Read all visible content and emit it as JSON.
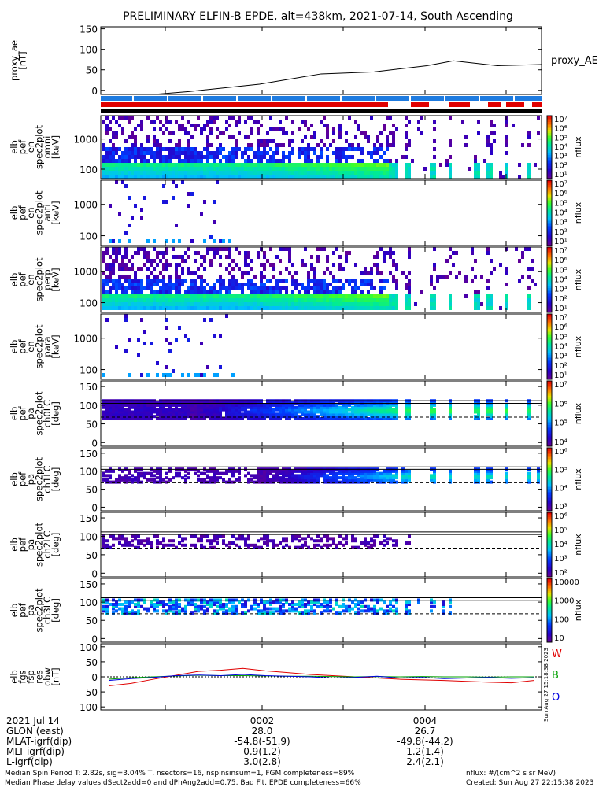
{
  "title": "PRELIMINARY ELFIN-B EPDE, alt=438km, 2021-07-14, South Ascending",
  "chart_data": [
    {
      "type": "line",
      "name": "proxy_ae",
      "ylabel_lines": [
        "proxy_ae",
        "[nT]"
      ],
      "side_label": "proxy_AE",
      "ylim": [
        -10,
        155
      ],
      "yticks": [
        "150",
        "100",
        "50",
        "0"
      ],
      "x": [
        0.0,
        0.12,
        0.2,
        0.36,
        0.5,
        0.62,
        0.74,
        0.8,
        0.9,
        1.0
      ],
      "values": [
        -15,
        -15,
        -3,
        15,
        40,
        45,
        60,
        72,
        60,
        63
      ]
    },
    {
      "type": "heatmap",
      "name": "elb pef en spec2plot omni",
      "ylabel_lines": [
        "elb",
        "pef",
        "en",
        "spec2plot",
        "omni",
        "[keV]"
      ],
      "yticks": [
        "1000",
        "100"
      ],
      "zlabel": "nflux",
      "zticks": [
        "10⁷",
        "10⁶",
        "10⁵",
        "10⁴",
        "10³",
        "10²",
        "10¹"
      ]
    },
    {
      "type": "heatmap",
      "name": "elb pef en spec2plot anti",
      "ylabel_lines": [
        "elb",
        "pef",
        "en",
        "spec2plot",
        "anti",
        "[keV]"
      ],
      "yticks": [
        "1000",
        "100"
      ],
      "zlabel": "nflux",
      "zticks": [
        "10⁷",
        "10⁶",
        "10⁵",
        "10⁴",
        "10³",
        "10²",
        "10¹"
      ]
    },
    {
      "type": "heatmap",
      "name": "elb pef en spec2plot perp",
      "ylabel_lines": [
        "elb",
        "pef",
        "en",
        "spec2plot",
        "perp",
        "[keV]"
      ],
      "yticks": [
        "1000",
        "100"
      ],
      "zlabel": "nflux",
      "zticks": [
        "10⁷",
        "10⁶",
        "10⁵",
        "10⁴",
        "10³",
        "10²",
        "10¹"
      ]
    },
    {
      "type": "heatmap",
      "name": "elb pef en spec2plot para",
      "ylabel_lines": [
        "elb",
        "pef",
        "en",
        "spec2plot",
        "para",
        "[keV]"
      ],
      "yticks": [
        "1000",
        "100"
      ],
      "zlabel": "nflux",
      "zticks": [
        "10⁷",
        "10⁶",
        "10⁵",
        "10⁴",
        "10³",
        "10²",
        "10¹"
      ]
    },
    {
      "type": "heatmap",
      "name": "elb pef pa spec2plot ch0LC",
      "ylabel_lines": [
        "elb",
        "pef",
        "pa",
        "spec2plot",
        "ch0LC",
        "[deg]"
      ],
      "yticks": [
        "150",
        "100",
        "50",
        "0"
      ],
      "zlabel": "nflux",
      "zticks": [
        "10⁷",
        "10⁶",
        "10⁵",
        "10⁴"
      ]
    },
    {
      "type": "heatmap",
      "name": "elb pef pa spec2plot ch1LC",
      "ylabel_lines": [
        "elb",
        "pef",
        "pa",
        "spec2plot",
        "ch1LC",
        "[deg]"
      ],
      "yticks": [
        "150",
        "100",
        "50",
        "0"
      ],
      "zlabel": "nflux",
      "zticks": [
        "10⁶",
        "10⁵",
        "10⁴",
        "10³"
      ]
    },
    {
      "type": "heatmap",
      "name": "elb pef pa spec2plot ch2LC",
      "ylabel_lines": [
        "elb",
        "pef",
        "pa",
        "spec2plot",
        "ch2LC",
        "[deg]"
      ],
      "yticks": [
        "150",
        "100",
        "50",
        "0"
      ],
      "zlabel": "nflux",
      "zticks": [
        "10⁶",
        "10⁵",
        "10⁴",
        "10³",
        "10²"
      ]
    },
    {
      "type": "heatmap",
      "name": "elb pef pa spec2plot ch3LC",
      "ylabel_lines": [
        "elb",
        "pef",
        "pa",
        "spec2plot",
        "ch3LC",
        "[deg]"
      ],
      "yticks": [
        "150",
        "100",
        "50",
        "0"
      ],
      "zlabel": "nflux",
      "zticks": [
        "10000",
        "1000",
        "100",
        "10"
      ]
    },
    {
      "type": "line",
      "name": "elb fgs fsp res obw",
      "ylabel_lines": [
        "elb",
        "fgs",
        "fsp",
        "res",
        "obw",
        "[nT]"
      ],
      "ylim": [
        -110,
        110
      ],
      "yticks": [
        "100",
        "50",
        "0",
        "-50",
        "-100"
      ],
      "series": [
        {
          "name": "W",
          "color": "#e00000",
          "values": [
            -30,
            -22,
            -8,
            5,
            18,
            22,
            28,
            20,
            14,
            8,
            4,
            0,
            -4,
            -8,
            -10,
            -12,
            -15,
            -18,
            -20,
            -12
          ]
        },
        {
          "name": "B",
          "color": "#00a000",
          "values": [
            -8,
            -3,
            0,
            3,
            5,
            4,
            4,
            3,
            2,
            2,
            1,
            0,
            1,
            0,
            1,
            0,
            0,
            -1,
            0,
            0
          ]
        },
        {
          "name": "O",
          "color": "#0000e0",
          "values": [
            -12,
            -6,
            -2,
            4,
            6,
            4,
            8,
            4,
            2,
            0,
            -4,
            -2,
            2,
            -4,
            -2,
            -6,
            -4,
            -2,
            -5,
            -3
          ]
        }
      ]
    }
  ],
  "side_stamp": "Sun Aug 27 15:18:38 2023",
  "footer": {
    "date": "2021 Jul 14",
    "time_ticks": [
      "0002",
      "0004"
    ],
    "rows": [
      {
        "label": "GLON (east)",
        "v1": "28.0",
        "v2": "26.7"
      },
      {
        "label": "MLAT-igrf(dip)",
        "v1": "-54.8(-51.9)",
        "v2": "-49.8(-44.2)"
      },
      {
        "label": "MLT-igrf(dip)",
        "v1": "0.9(1.2)",
        "v2": "1.2(1.4)"
      },
      {
        "label": "L-igrf(dip)",
        "v1": "3.0(2.8)",
        "v2": "2.4(2.1)"
      }
    ],
    "note1": "Median Spin Period T: 2.82s, sig=3.04% T, nsectors=16, nspinsinsum=1, FGM completeness=89%",
    "note2": "Median Phase delay values dSect2add=0 and dPhAng2add=0.75, Bad Fit, EPDE completeness=66%",
    "units": "nflux: #/(cm^2 s sr MeV)",
    "created": "Created: Sun Aug 27 22:15:38 2023"
  }
}
